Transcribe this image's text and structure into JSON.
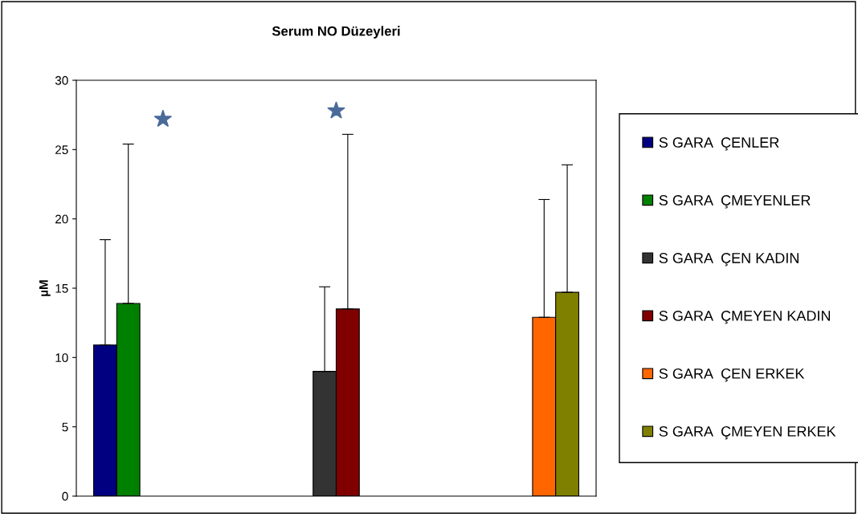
{
  "chart_data": {
    "type": "bar",
    "title": "Serum NO Düzeyleri",
    "ylabel": "µM",
    "categories": [
      null,
      null,
      null
    ],
    "series": [
      {
        "name": "S GARA  ÇENLER",
        "color": "#000080",
        "values": [
          10.9,
          null,
          null
        ],
        "errors": [
          [
            10.9,
            18.5
          ],
          null,
          null
        ]
      },
      {
        "name": "S GARA  ÇMEYENLER",
        "color": "#008000",
        "values": [
          13.9,
          null,
          null
        ],
        "errors": [
          [
            13.9,
            25.4
          ],
          null,
          null
        ]
      },
      {
        "name": "S GARA  ÇEN KADIN",
        "color": "#333333",
        "values": [
          null,
          9.0,
          null
        ],
        "errors": [
          null,
          [
            9.0,
            15.1
          ],
          null
        ]
      },
      {
        "name": "S GARA  ÇMEYEN KADIN",
        "color": "#800000",
        "values": [
          null,
          13.5,
          null
        ],
        "errors": [
          null,
          [
            13.5,
            26.1
          ],
          null
        ]
      },
      {
        "name": "S GARA  ÇEN ERKEK",
        "color": "#ff6600",
        "values": [
          null,
          null,
          12.9
        ],
        "errors": [
          null,
          null,
          [
            12.9,
            21.4
          ]
        ]
      },
      {
        "name": "S GARA  ÇMEYEN ERKEK",
        "color": "#808000",
        "values": [
          null,
          null,
          14.7
        ],
        "errors": [
          null,
          null,
          [
            14.7,
            23.9
          ]
        ]
      },
      {
        "type": "scatter",
        "color": "#4a6a9a",
        "marker": "star",
        "values": [
          27.2,
          27.8,
          null
        ]
      }
    ],
    "ylim": [
      0,
      30
    ],
    "yticks": [
      0,
      5,
      10,
      15,
      20,
      25,
      30
    ],
    "tick_labels": "y",
    "legend": "right",
    "grid": false
  }
}
